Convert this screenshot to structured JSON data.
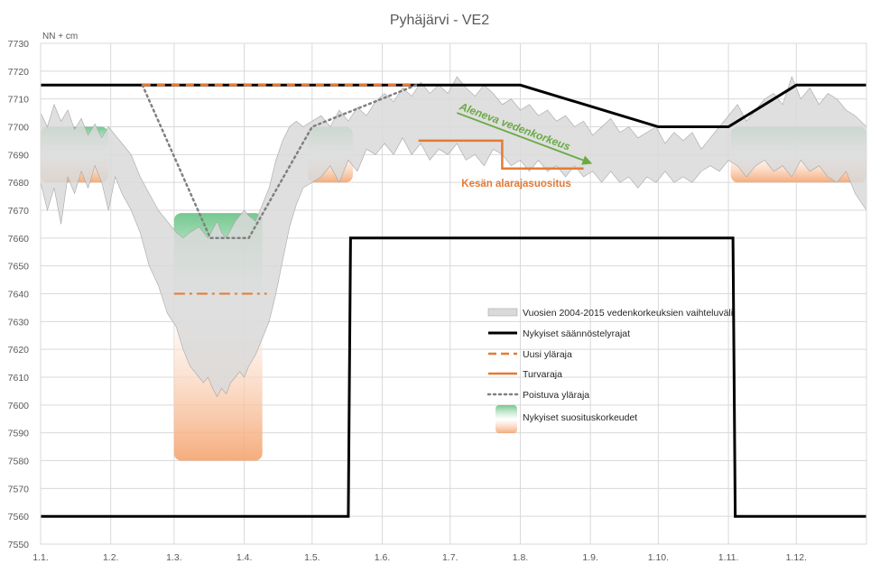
{
  "chart_data": {
    "type": "area",
    "title": "Pyhäjärvi - VE2",
    "ylabel": "NN + cm",
    "xlabel": "",
    "ylim": [
      7550,
      7730
    ],
    "xlim": [
      0,
      365
    ],
    "grid": true,
    "legend_position": "center-right",
    "y_ticks": [
      7550,
      7560,
      7570,
      7580,
      7590,
      7600,
      7610,
      7620,
      7630,
      7640,
      7650,
      7660,
      7670,
      7680,
      7690,
      7700,
      7710,
      7720,
      7730
    ],
    "x_tick_labels": [
      {
        "label": "1.1.",
        "day": 0
      },
      {
        "label": "1.2.",
        "day": 31
      },
      {
        "label": "1.3.",
        "day": 59
      },
      {
        "label": "1.4.",
        "day": 90
      },
      {
        "label": "1.5.",
        "day": 120
      },
      {
        "label": "1.6.",
        "day": 151
      },
      {
        "label": "1.7.",
        "day": 181
      },
      {
        "label": "1.8.",
        "day": 212
      },
      {
        "label": "1.9.",
        "day": 243
      },
      {
        "label": "1.10.",
        "day": 273
      },
      {
        "label": "1.11.",
        "day": 304
      },
      {
        "label": "1.12.",
        "day": 334
      }
    ],
    "colors": {
      "range_fill": "#d9d9d9",
      "range_edge": "#a6a6a6",
      "regulation": "#000000",
      "new_upper": "#e67a32",
      "safety": "#e67a32",
      "old_upper": "#808080",
      "rec_green": "#5dbe7c",
      "rec_orange": "#f4a36e",
      "anno_green": "#6aaa45",
      "anno_orange": "#e67a32"
    },
    "series": [
      {
        "name": "Vuosien 2004-2015 vedenkorkeuksien vaihteluväli",
        "kind": "range",
        "x": [
          0,
          3,
          6,
          9,
          12,
          15,
          18,
          21,
          24,
          27,
          30,
          33,
          36,
          40,
          44,
          48,
          52,
          56,
          60,
          63,
          66,
          68,
          70,
          72,
          74,
          76,
          78,
          80,
          82,
          84,
          86,
          88,
          90,
          92,
          95,
          98,
          101,
          104,
          107,
          110,
          113,
          116,
          120,
          124,
          128,
          132,
          136,
          140,
          144,
          148,
          152,
          156,
          160,
          164,
          168,
          172,
          176,
          180,
          184,
          188,
          192,
          196,
          200,
          204,
          208,
          212,
          216,
          220,
          224,
          228,
          232,
          236,
          240,
          244,
          248,
          252,
          256,
          260,
          264,
          268,
          272,
          276,
          280,
          284,
          288,
          292,
          296,
          300,
          304,
          308,
          312,
          316,
          320,
          324,
          328,
          332,
          336,
          340,
          344,
          348,
          352,
          356,
          360,
          365
        ],
        "high": [
          7705,
          7700,
          7708,
          7702,
          7706,
          7699,
          7703,
          7697,
          7701,
          7696,
          7700,
          7697,
          7694,
          7690,
          7682,
          7676,
          7670,
          7666,
          7662,
          7660,
          7662,
          7663,
          7664,
          7662,
          7660,
          7663,
          7666,
          7662,
          7660,
          7663,
          7666,
          7668,
          7670,
          7668,
          7666,
          7672,
          7678,
          7688,
          7695,
          7700,
          7702,
          7700,
          7702,
          7704,
          7700,
          7706,
          7702,
          7707,
          7704,
          7709,
          7712,
          7709,
          7714,
          7711,
          7716,
          7712,
          7715,
          7712,
          7718,
          7714,
          7711,
          7715,
          7712,
          7708,
          7710,
          7706,
          7708,
          7704,
          7706,
          7702,
          7704,
          7700,
          7702,
          7697,
          7700,
          7703,
          7698,
          7700,
          7696,
          7698,
          7700,
          7694,
          7698,
          7695,
          7698,
          7692,
          7696,
          7700,
          7704,
          7708,
          7702,
          7706,
          7710,
          7712,
          7708,
          7718,
          7710,
          7714,
          7708,
          7712,
          7710,
          7706,
          7704,
          7700
        ],
        "low": [
          7680,
          7670,
          7678,
          7665,
          7682,
          7676,
          7684,
          7678,
          7686,
          7680,
          7670,
          7682,
          7676,
          7670,
          7662,
          7650,
          7643,
          7633,
          7628,
          7620,
          7614,
          7612,
          7610,
          7608,
          7610,
          7606,
          7603,
          7606,
          7604,
          7608,
          7610,
          7612,
          7610,
          7614,
          7618,
          7624,
          7630,
          7640,
          7652,
          7664,
          7672,
          7678,
          7680,
          7682,
          7686,
          7680,
          7688,
          7684,
          7692,
          7690,
          7694,
          7690,
          7696,
          7690,
          7694,
          7688,
          7692,
          7690,
          7694,
          7688,
          7690,
          7686,
          7692,
          7690,
          7686,
          7688,
          7684,
          7688,
          7684,
          7686,
          7682,
          7686,
          7682,
          7684,
          7680,
          7684,
          7680,
          7682,
          7678,
          7682,
          7680,
          7684,
          7680,
          7682,
          7680,
          7684,
          7686,
          7684,
          7688,
          7686,
          7682,
          7686,
          7688,
          7684,
          7686,
          7682,
          7688,
          7684,
          7686,
          7682,
          7680,
          7684,
          7676,
          7670
        ]
      },
      {
        "name": "Nykyiset säännöstelyrajat",
        "kind": "line",
        "segments": [
          {
            "x": [
              0,
              138,
              212,
              273,
              304,
              334,
              365
            ],
            "y": [
              7715,
              7715,
              7715,
              7700,
              7700,
              7715,
              7715
            ]
          },
          {
            "x": [
              0,
              136,
              137,
              306,
              307,
              365
            ],
            "y": [
              7560,
              7560,
              7660,
              7660,
              7560,
              7560
            ]
          }
        ]
      },
      {
        "name": "Uusi yläraja",
        "kind": "dashed",
        "x": [
          45,
          166
        ],
        "y": [
          7715,
          7715
        ]
      },
      {
        "name": "Turvaraja",
        "kind": "dashdot",
        "x": [
          59,
          100
        ],
        "y": [
          7640,
          7640
        ]
      },
      {
        "name": "Poistuva yläraja",
        "kind": "dotted",
        "x": [
          45,
          75,
          92,
          120,
          166
        ],
        "y": [
          7715,
          7660,
          7660,
          7700,
          7715
        ]
      },
      {
        "name": "Nykyiset suosituskorkeudet",
        "kind": "bands",
        "bands": [
          {
            "x0": 0,
            "x1": 30,
            "y_top": 7700,
            "y_bottom": 7680
          },
          {
            "x0": 59,
            "x1": 98,
            "y_top": 7669,
            "y_bottom": 7580
          },
          {
            "x0": 118,
            "x1": 138,
            "y_top": 7700,
            "y_bottom": 7680
          },
          {
            "x0": 305,
            "x1": 365,
            "y_top": 7700,
            "y_bottom": 7680
          }
        ]
      }
    ],
    "summer_lower_limit": {
      "label": "Kesän alarajasuositus",
      "x": [
        167,
        184,
        184,
        204,
        204,
        240
      ],
      "y": [
        7695,
        7695,
        7695,
        7695,
        7685,
        7685
      ]
    },
    "annotations": [
      {
        "text": "Aleneva vedenkorkeus",
        "x0": 184,
        "y0": 7705,
        "x1": 243,
        "y1": 7687
      }
    ]
  }
}
